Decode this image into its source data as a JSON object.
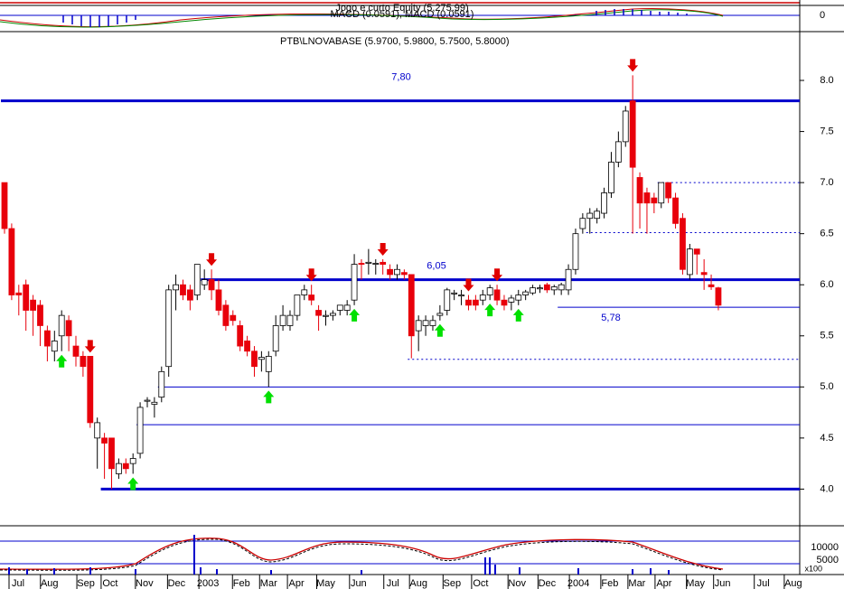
{
  "panels": {
    "equity_label": "Jogo e curto Equity (5,275.99)",
    "macd_label": "MACD (0.0591), MACD (0.0591)",
    "macd_zero": "0",
    "volume_ticks": [
      "10000",
      "5000",
      "x100"
    ]
  },
  "chart_data": {
    "type": "candlestick",
    "title": "PTB\\LNOVABASE (5.9700, 5.9800, 5.7500, 5.8000)",
    "up_color": "#ffffff",
    "down_color": "#e8000b",
    "level_color": "#0000cc",
    "open": [
      7.0,
      6.55,
      5.92,
      6.0,
      5.85,
      5.8,
      5.55,
      5.35,
      5.5,
      5.65,
      5.4,
      5.3,
      5.3,
      4.5,
      4.5,
      4.5,
      4.15,
      4.25,
      4.25,
      4.35,
      4.86,
      4.83,
      4.9,
      5.2,
      5.95,
      6.0,
      5.95,
      5.9,
      6.0,
      6.05,
      5.95,
      5.8,
      5.7,
      5.6,
      5.45,
      5.35,
      5.27,
      5.15,
      5.35,
      5.6,
      5.6,
      5.7,
      5.9,
      5.9,
      5.75,
      5.69,
      5.7,
      5.75,
      5.75,
      5.85,
      6.21,
      6.21,
      6.2,
      6.22,
      6.15,
      6.1,
      6.12,
      6.1,
      5.55,
      5.6,
      5.6,
      5.7,
      5.75,
      5.91,
      5.89,
      5.85,
      5.85,
      5.85,
      5.9,
      5.95,
      5.85,
      5.83,
      5.85,
      5.9,
      5.92,
      5.96,
      6.0,
      5.95,
      5.95,
      5.95,
      6.15,
      6.55,
      6.65,
      6.65,
      6.7,
      6.9,
      7.2,
      7.4,
      7.8,
      7.05,
      6.9,
      6.85,
      6.8,
      7.0,
      6.85,
      6.65,
      6.1,
      6.35,
      6.12,
      6.0,
      5.97
    ],
    "high": [
      7.0,
      6.6,
      6.0,
      6.05,
      5.9,
      5.85,
      5.6,
      5.55,
      5.75,
      5.7,
      5.5,
      5.35,
      5.3,
      4.7,
      4.55,
      4.5,
      4.3,
      4.3,
      4.35,
      4.85,
      4.9,
      4.9,
      5.2,
      6.0,
      6.1,
      6.05,
      6.0,
      6.2,
      6.15,
      6.15,
      6.05,
      5.85,
      5.75,
      5.65,
      5.5,
      5.4,
      5.35,
      5.35,
      5.7,
      5.8,
      5.75,
      5.9,
      6.0,
      6.0,
      5.8,
      5.75,
      5.75,
      5.8,
      5.85,
      6.3,
      6.25,
      6.35,
      6.25,
      6.25,
      6.2,
      6.2,
      6.15,
      6.1,
      5.7,
      5.7,
      5.7,
      5.8,
      5.97,
      5.95,
      5.95,
      5.9,
      5.9,
      5.95,
      6.0,
      6.0,
      5.9,
      5.9,
      5.95,
      5.95,
      6.0,
      6.0,
      6.02,
      6.0,
      6.02,
      6.2,
      6.55,
      6.7,
      6.75,
      6.75,
      6.95,
      7.3,
      7.5,
      7.75,
      8.05,
      7.1,
      6.95,
      6.9,
      7.0,
      7.0,
      6.9,
      6.7,
      6.4,
      6.35,
      6.25,
      6.1,
      5.98
    ],
    "low": [
      6.5,
      5.85,
      5.7,
      5.55,
      5.5,
      5.4,
      5.25,
      5.25,
      5.35,
      5.35,
      5.2,
      5.1,
      4.6,
      4.2,
      4.1,
      4.0,
      4.1,
      4.15,
      4.15,
      4.3,
      4.8,
      4.7,
      4.85,
      5.1,
      5.75,
      5.85,
      5.75,
      5.85,
      5.95,
      5.85,
      5.7,
      5.55,
      5.6,
      5.35,
      5.3,
      5.1,
      5.15,
      5.0,
      5.3,
      5.55,
      5.55,
      5.65,
      5.85,
      5.8,
      5.55,
      5.6,
      5.65,
      5.7,
      5.7,
      5.8,
      6.05,
      6.1,
      6.1,
      6.1,
      6.05,
      6.05,
      6.05,
      5.28,
      5.35,
      5.5,
      5.55,
      5.65,
      5.7,
      5.85,
      5.8,
      5.75,
      5.75,
      5.8,
      5.85,
      5.8,
      5.75,
      5.75,
      5.8,
      5.85,
      5.9,
      5.92,
      5.92,
      5.9,
      5.9,
      5.9,
      6.1,
      6.5,
      6.5,
      6.6,
      6.65,
      6.85,
      7.15,
      7.35,
      6.5,
      6.55,
      6.5,
      6.7,
      6.75,
      6.8,
      6.55,
      6.1,
      6.05,
      6.1,
      5.95,
      5.95,
      5.75
    ],
    "close": [
      6.55,
      5.9,
      5.9,
      5.75,
      5.75,
      5.6,
      5.4,
      5.45,
      5.7,
      5.5,
      5.3,
      5.2,
      4.65,
      4.65,
      4.45,
      4.2,
      4.25,
      4.2,
      4.3,
      4.8,
      4.87,
      4.85,
      5.15,
      5.95,
      6.0,
      5.9,
      5.85,
      6.2,
      6.05,
      5.95,
      5.75,
      5.6,
      5.65,
      5.4,
      5.35,
      5.2,
      5.29,
      5.3,
      5.6,
      5.7,
      5.7,
      5.9,
      5.95,
      5.85,
      5.7,
      5.7,
      5.72,
      5.8,
      5.8,
      6.2,
      6.2,
      6.22,
      6.21,
      6.2,
      6.1,
      6.15,
      6.1,
      5.5,
      5.65,
      5.65,
      5.65,
      5.72,
      5.95,
      5.92,
      5.9,
      5.8,
      5.8,
      5.9,
      5.97,
      5.85,
      5.8,
      5.87,
      5.9,
      5.93,
      5.97,
      5.97,
      5.95,
      5.98,
      6.0,
      6.15,
      6.5,
      6.65,
      6.7,
      6.72,
      6.9,
      7.2,
      7.4,
      7.7,
      7.15,
      6.8,
      6.8,
      6.8,
      7.0,
      6.85,
      6.6,
      6.15,
      6.35,
      6.3,
      6.1,
      5.98,
      5.8
    ],
    "buy_signals": [
      8,
      18,
      37,
      49,
      61,
      68,
      72
    ],
    "sell_signals": [
      12,
      29,
      43,
      53,
      65,
      69,
      88
    ],
    "levels": [
      {
        "value": 7.8,
        "label": "7,80",
        "style": "thick",
        "start": 0
      },
      {
        "value": 6.05,
        "label": "6,05",
        "style": "thick",
        "start": 28
      },
      {
        "value": 5.78,
        "label": "5,78",
        "style": "thin",
        "start": 78
      },
      {
        "value": 4.0,
        "style": "thick",
        "start": 14
      },
      {
        "value": 5.0,
        "style": "thin",
        "start": 22
      },
      {
        "value": 4.63,
        "style": "thin",
        "start": 19
      },
      {
        "value": 7.0,
        "style": "dotted",
        "start": 92
      },
      {
        "value": 6.51,
        "style": "dotted",
        "start": 82
      },
      {
        "value": 5.27,
        "style": "dotted",
        "start": 57
      }
    ],
    "xlim": [
      -0.633,
      111.4
    ],
    "xticks": [
      {
        "value": 1.9,
        "label": "Jul"
      },
      {
        "value": 6.3,
        "label": "Aug"
      },
      {
        "value": 11.4,
        "label": "Sep"
      },
      {
        "value": 14.8,
        "label": "Oct"
      },
      {
        "value": 19.6,
        "label": "Nov"
      },
      {
        "value": 24.1,
        "label": "Dec"
      },
      {
        "value": 28.5,
        "label": "2003"
      },
      {
        "value": 33.2,
        "label": "Feb"
      },
      {
        "value": 37.0,
        "label": "Mar"
      },
      {
        "value": 40.9,
        "label": "Apr"
      },
      {
        "value": 45.0,
        "label": "May"
      },
      {
        "value": 49.6,
        "label": "Jun"
      },
      {
        "value": 54.4,
        "label": "Jul"
      },
      {
        "value": 58.0,
        "label": "Aug"
      },
      {
        "value": 62.7,
        "label": "Sep"
      },
      {
        "value": 66.7,
        "label": "Oct"
      },
      {
        "value": 71.8,
        "label": "Nov"
      },
      {
        "value": 76.0,
        "label": "Dec"
      },
      {
        "value": 80.4,
        "label": "2004"
      },
      {
        "value": 84.8,
        "label": "Feb"
      },
      {
        "value": 88.6,
        "label": "Mar"
      },
      {
        "value": 92.4,
        "label": "Apr"
      },
      {
        "value": 96.8,
        "label": "May"
      },
      {
        "value": 100.6,
        "label": "Jun"
      },
      {
        "value": 106.3,
        "label": "Jul"
      },
      {
        "value": 110.5,
        "label": "Aug"
      }
    ],
    "ylim": [
      3.65,
      8.46
    ],
    "yticks": [
      {
        "value": 4,
        "label": "4.0"
      },
      4.5,
      {
        "value": 5,
        "label": "5.0"
      },
      5.5,
      {
        "value": 6,
        "label": "6.0"
      },
      6.5,
      {
        "value": 7,
        "label": "7.0"
      },
      7.5,
      {
        "value": 8,
        "label": "8.0"
      }
    ]
  }
}
